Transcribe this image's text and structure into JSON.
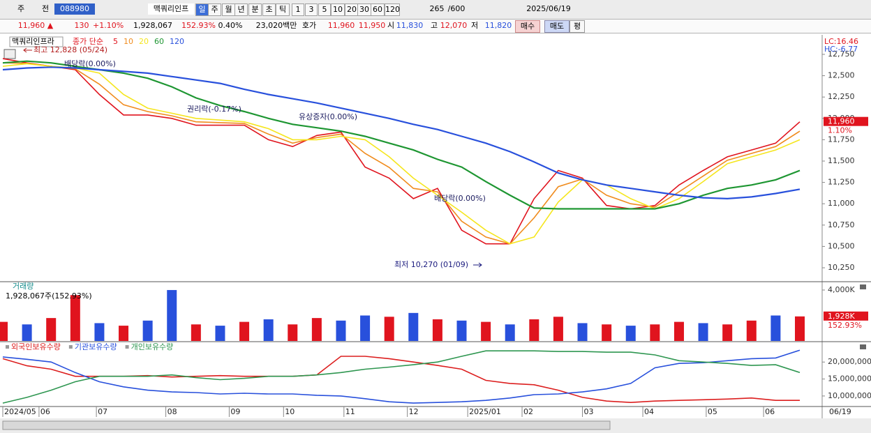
{
  "toolbar": {
    "items": [
      "주",
      "전",
      "088980",
      "맥쿼리인프",
      "일",
      "주",
      "월",
      "년",
      "분",
      "초",
      "틱",
      "1",
      "3",
      "5",
      "10",
      "20",
      "30",
      "60",
      "120",
      "265",
      "/600",
      "2025/06/19"
    ]
  },
  "info": {
    "items": [
      "11,960 ▲",
      "130",
      "+1.10%",
      "1,928,067",
      "152.93%",
      "0.40%",
      "23,020백만",
      "호가",
      "11,960",
      "11,950",
      "시",
      "11,830",
      "고",
      "12,070",
      "저",
      "11,820",
      "매수",
      "매도",
      "평"
    ]
  },
  "chart_data": [
    {
      "type": "line",
      "title": "맥쿼리인프라",
      "legend_label": "종가 단순",
      "right_labels": [
        "LC:16.46",
        "HC:-6.77"
      ],
      "annotations": [
        "최고 12,828 (05/24)",
        "배당락(0.00%)",
        "권리락(-0.17%)",
        "유상증자(0.00%)",
        "배당락(0.00%)",
        "최저 10,270 (01/09)"
      ],
      "current": {
        "value": 11960,
        "label": "11,960",
        "change": "1.10%"
      },
      "x": [
        0,
        8,
        16,
        24,
        32,
        40,
        48,
        56,
        64,
        72,
        80,
        88,
        96,
        104,
        112,
        120,
        128,
        136,
        144,
        152,
        160,
        168,
        176,
        184,
        192,
        200,
        208,
        216,
        224,
        232,
        240,
        248,
        256,
        264
      ],
      "xlim": [
        0,
        271.4
      ],
      "ylim": [
        10095,
        12962
      ],
      "yticks": [
        {
          "value": 10250,
          "label": "10,250"
        },
        {
          "value": 10500,
          "label": "10,500"
        },
        {
          "value": 10750,
          "label": "10,750"
        },
        {
          "value": 11000,
          "label": "11,000"
        },
        {
          "value": 11250,
          "label": "11,250"
        },
        {
          "value": 11500,
          "label": "11,500"
        },
        {
          "value": 11750,
          "label": "11,750"
        },
        {
          "value": 12000,
          "label": "12,000"
        },
        {
          "value": 12250,
          "label": "12,250"
        },
        {
          "value": 12500,
          "label": "12,500"
        },
        {
          "value": 12750,
          "label": "12,750"
        }
      ],
      "series": [
        {
          "name": "5",
          "color": "#e0141e",
          "values": [
            12700,
            12650,
            12610,
            12570,
            12280,
            12040,
            12040,
            12000,
            11920,
            11920,
            11920,
            11750,
            11670,
            11800,
            11840,
            11430,
            11300,
            11060,
            11180,
            10690,
            10530,
            10530,
            11060,
            11390,
            11300,
            10980,
            10940,
            10980,
            11220,
            11390,
            11550,
            11630,
            11710,
            11960
          ]
        },
        {
          "name": "10",
          "color": "#f08c1e",
          "values": [
            12650,
            12645,
            12610,
            12580,
            12400,
            12160,
            12080,
            12030,
            11960,
            11950,
            11940,
            11815,
            11710,
            11775,
            11815,
            11590,
            11425,
            11180,
            11140,
            10795,
            10610,
            10530,
            10835,
            11200,
            11290,
            11100,
            11000,
            10960,
            11140,
            11325,
            11510,
            11590,
            11670,
            11850
          ]
        },
        {
          "name": "20",
          "color": "#f5e61e",
          "values": [
            12610,
            12640,
            12610,
            12590,
            12530,
            12280,
            12120,
            12060,
            12000,
            11980,
            11960,
            11880,
            11750,
            11750,
            11790,
            11750,
            11550,
            11300,
            11100,
            10900,
            10690,
            10530,
            10610,
            11020,
            11280,
            11220,
            11060,
            10940,
            11060,
            11260,
            11470,
            11550,
            11630,
            11750
          ]
        },
        {
          "name": "60",
          "color": "#1e9632",
          "values": [
            12650,
            12670,
            12650,
            12610,
            12570,
            12530,
            12470,
            12370,
            12240,
            12150,
            12080,
            12000,
            11930,
            11890,
            11850,
            11790,
            11710,
            11630,
            11520,
            11430,
            11260,
            11100,
            10950,
            10940,
            10940,
            10940,
            10940,
            10940,
            11000,
            11100,
            11180,
            11220,
            11280,
            11390
          ]
        },
        {
          "name": "120",
          "color": "#2850dc",
          "values": [
            12570,
            12590,
            12600,
            12590,
            12570,
            12550,
            12530,
            12490,
            12450,
            12410,
            12340,
            12280,
            12230,
            12180,
            12120,
            12060,
            12000,
            11930,
            11870,
            11790,
            11710,
            11610,
            11490,
            11360,
            11280,
            11220,
            11180,
            11140,
            11100,
            11070,
            11060,
            11080,
            11120,
            11170
          ]
        }
      ]
    },
    {
      "type": "bar",
      "title": "거래량",
      "subtitle": "1,928,067주(152.93%)",
      "current": {
        "value": 1928,
        "label": "1,928K",
        "change": "152.93%"
      },
      "x": [
        0,
        8,
        16,
        24,
        32,
        40,
        48,
        56,
        64,
        72,
        80,
        88,
        96,
        104,
        112,
        120,
        128,
        136,
        144,
        152,
        160,
        168,
        176,
        184,
        192,
        200,
        208,
        216,
        224,
        232,
        240,
        248,
        256,
        264
      ],
      "xlim": [
        0,
        271.4
      ],
      "ylim": [
        0,
        4600
      ],
      "yticks": [
        {
          "value": 4000,
          "label": "4,000K"
        }
      ],
      "values": [
        1500,
        1300,
        1800,
        3600,
        1400,
        1200,
        1600,
        4000,
        1300,
        1200,
        1500,
        1700,
        1300,
        1800,
        1600,
        2000,
        1900,
        2200,
        1700,
        1600,
        1500,
        1300,
        1700,
        1900,
        1400,
        1300,
        1200,
        1300,
        1500,
        1400,
        1300,
        1600,
        2000,
        1928
      ],
      "colors": [
        "#e0141e",
        "#2850dc",
        "#e0141e",
        "#e0141e",
        "#2850dc",
        "#e0141e",
        "#2850dc",
        "#2850dc",
        "#e0141e",
        "#2850dc",
        "#e0141e",
        "#2850dc",
        "#e0141e",
        "#e0141e",
        "#2850dc",
        "#2850dc",
        "#e0141e",
        "#2850dc",
        "#e0141e",
        "#2850dc",
        "#e0141e",
        "#2850dc",
        "#e0141e",
        "#e0141e",
        "#2850dc",
        "#e0141e",
        "#2850dc",
        "#e0141e",
        "#e0141e",
        "#2850dc",
        "#e0141e",
        "#e0141e",
        "#2850dc",
        "#e0141e"
      ]
    },
    {
      "type": "line",
      "x": [
        0,
        8,
        16,
        24,
        32,
        40,
        48,
        56,
        64,
        72,
        80,
        88,
        96,
        104,
        112,
        120,
        128,
        136,
        144,
        152,
        160,
        168,
        176,
        184,
        192,
        200,
        208,
        216,
        224,
        232,
        240,
        248,
        256,
        264
      ],
      "xlim": [
        0,
        271.4
      ],
      "ylim": [
        6900000,
        25800000
      ],
      "yticks": [
        {
          "value": 10000000,
          "label": "10,000,000"
        },
        {
          "value": 15000000,
          "label": "15,000,000"
        },
        {
          "value": 20000000,
          "label": "20,000,000"
        }
      ],
      "xticks": [
        {
          "value": 0,
          "label": "2024/05"
        },
        {
          "value": 12,
          "label": "06"
        },
        {
          "value": 31,
          "label": "07"
        },
        {
          "value": 54,
          "label": "08"
        },
        {
          "value": 75,
          "label": "09"
        },
        {
          "value": 93,
          "label": "10"
        },
        {
          "value": 113,
          "label": "11"
        },
        {
          "value": 134,
          "label": "12"
        },
        {
          "value": 154,
          "label": "2025/01"
        },
        {
          "value": 172,
          "label": "02"
        },
        {
          "value": 192,
          "label": "03"
        },
        {
          "value": 212,
          "label": "04"
        },
        {
          "value": 233,
          "label": "05"
        },
        {
          "value": 252,
          "label": "06"
        }
      ],
      "x_end_label": "06/19",
      "series": [
        {
          "name": "외국인보유수량",
          "color": "#dc1e1e",
          "values": [
            21000000,
            18900000,
            17900000,
            15800000,
            15800000,
            15800000,
            16000000,
            15600000,
            15800000,
            16000000,
            15800000,
            15800000,
            15800000,
            16200000,
            21700000,
            21700000,
            21000000,
            20000000,
            19000000,
            17900000,
            14600000,
            13700000,
            13300000,
            11700000,
            9600000,
            8500000,
            8100000,
            8500000,
            8700000,
            8900000,
            9100000,
            9400000,
            8700000,
            8700000
          ]
        },
        {
          "name": "기관보유수량",
          "color": "#2850dc",
          "values": [
            21500000,
            20800000,
            20000000,
            16900000,
            14200000,
            12700000,
            11700000,
            11200000,
            11000000,
            10600000,
            10800000,
            10600000,
            10600000,
            10200000,
            10000000,
            9200000,
            8300000,
            7900000,
            8100000,
            8300000,
            8700000,
            9400000,
            10400000,
            10600000,
            11200000,
            12100000,
            13700000,
            18300000,
            19600000,
            19800000,
            20400000,
            21000000,
            21200000,
            23500000
          ]
        },
        {
          "name": "개인보유수량",
          "color": "#2e9650",
          "values": [
            7900000,
            9600000,
            11700000,
            14200000,
            15800000,
            15800000,
            15800000,
            16200000,
            15400000,
            14800000,
            15200000,
            15800000,
            15800000,
            16200000,
            16900000,
            17900000,
            18500000,
            19200000,
            20000000,
            21700000,
            23300000,
            23300000,
            23300000,
            23100000,
            23100000,
            22900000,
            22900000,
            22100000,
            20400000,
            20000000,
            19600000,
            19000000,
            19200000,
            16900000
          ]
        }
      ]
    }
  ]
}
